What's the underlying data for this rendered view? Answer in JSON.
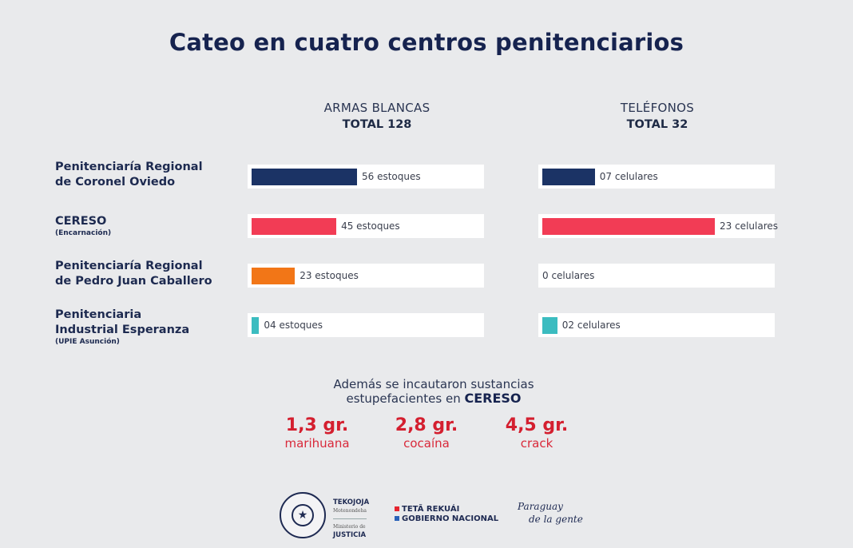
{
  "title": "Cateo en cuatro centros penitenciarios",
  "columns": [
    {
      "name": "ARMAS BLANCAS",
      "total": "TOTAL 128"
    },
    {
      "name": "TELÉFONOS",
      "total": "TOTAL 32"
    }
  ],
  "rows": [
    {
      "label_line1": "Penitenciaría Regional",
      "label_line2": "de Coronel Oviedo",
      "sub": ""
    },
    {
      "label_line1": "CERESO",
      "label_line2": "",
      "sub": "(Encarnación)"
    },
    {
      "label_line1": "Penitenciaría Regional",
      "label_line2": "de Pedro Juan Caballero",
      "sub": ""
    },
    {
      "label_line1": "Penitenciaria",
      "label_line2": "Industrial Esperanza",
      "sub": "(UPIE Asunción)"
    }
  ],
  "chart_data": [
    {
      "type": "bar",
      "orientation": "horizontal",
      "title": "ARMAS BLANCAS",
      "subtitle": "TOTAL 128",
      "categories": [
        "Penitenciaría Regional de Coronel Oviedo",
        "CERESO (Encarnación)",
        "Penitenciaría Regional de Pedro Juan Caballero",
        "Penitenciaria Industrial Esperanza (UPIE Asunción)"
      ],
      "values": [
        56,
        45,
        23,
        4
      ],
      "data_labels": [
        "56 estoques",
        "45 estoques",
        "23 estoques",
        "04 estoques"
      ],
      "colors": [
        "#1b3365",
        "#f23c55",
        "#f27617",
        "#3bbcc0"
      ],
      "xlim": [
        0,
        56
      ]
    },
    {
      "type": "bar",
      "orientation": "horizontal",
      "title": "TELÉFONOS",
      "subtitle": "TOTAL 32",
      "categories": [
        "Penitenciaría Regional de Coronel Oviedo",
        "CERESO (Encarnación)",
        "Penitenciaría Regional de Pedro Juan Caballero",
        "Penitenciaria Industrial Esperanza (UPIE Asunción)"
      ],
      "values": [
        7,
        23,
        0,
        2
      ],
      "data_labels": [
        "07 celulares",
        "23 celulares",
        "0 celulares",
        "02 celulares"
      ],
      "colors": [
        "#1b3365",
        "#f23c55",
        "#f27617",
        "#3bbcc0"
      ],
      "xlim": [
        0,
        23
      ]
    }
  ],
  "extra": {
    "line1": "Además se incautaron sustancias",
    "line2_prefix": "estupefacientes en ",
    "line2_bold": "CERESO",
    "drugs": [
      {
        "amount": "1,3 gr.",
        "name": "marihuana"
      },
      {
        "amount": "2,8 gr.",
        "name": "cocaína"
      },
      {
        "amount": "4,5 gr.",
        "name": "crack"
      }
    ]
  },
  "footer": {
    "seal_text": "REPÚBLICA DEL PARAGUAY",
    "tek_title": "TEKOJOJA",
    "tek_sub": "Motenondeha",
    "min_sub": "Ministerio de",
    "min_title": "JUSTICIA",
    "gob_line1": "TETÃ REKUÁI",
    "gob_line2": "GOBIERNO NACIONAL",
    "slogan_line1": "Paraguay",
    "slogan_line2": "de la gente",
    "flag_red": "#e5252f",
    "flag_blue": "#2a62b8"
  }
}
